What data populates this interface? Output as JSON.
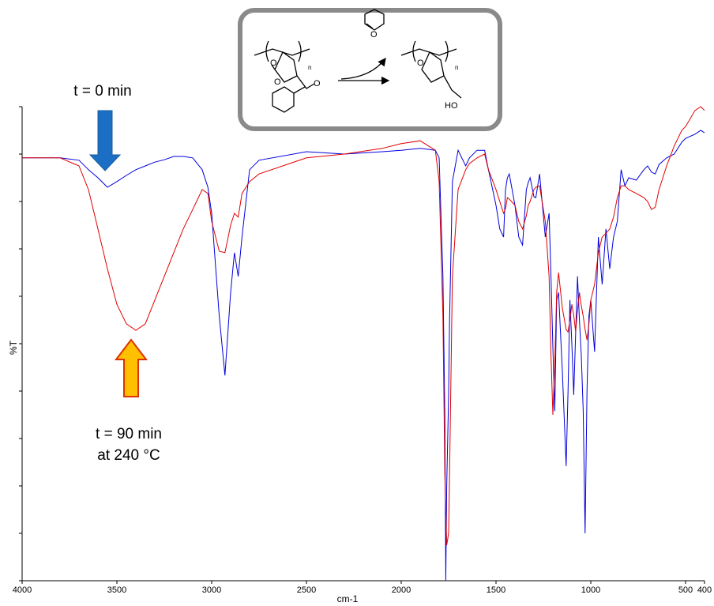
{
  "chart_data": {
    "type": "line",
    "xlabel": "cm-1",
    "ylabel": "%T",
    "annotations": [
      "t = 0 min",
      "t = 90 min",
      "at 240 °C"
    ],
    "scheme_labels": [
      "O",
      "O",
      "O",
      "n",
      "O",
      "O",
      "n",
      "HO"
    ],
    "xlim": [
      4000,
      400
    ],
    "xticks": [
      4000,
      3500,
      3000,
      2500,
      2000,
      1500,
      1000,
      500,
      400
    ],
    "ylim": [
      0,
      100
    ],
    "yticks": [
      0,
      10,
      20,
      30,
      40,
      50,
      60,
      70,
      80,
      90,
      100
    ],
    "x": [
      4000,
      3800,
      3700,
      3650,
      3600,
      3550,
      3500,
      3450,
      3400,
      3350,
      3300,
      3250,
      3200,
      3150,
      3100,
      3050,
      3020,
      3000,
      2960,
      2930,
      2900,
      2880,
      2860,
      2840,
      2800,
      2750,
      2500,
      2300,
      2100,
      2000,
      1900,
      1820,
      1800,
      1780,
      1770,
      1765,
      1760,
      1750,
      1745,
      1730,
      1700,
      1660,
      1640,
      1600,
      1560,
      1540,
      1500,
      1480,
      1460,
      1450,
      1440,
      1430,
      1400,
      1380,
      1360,
      1340,
      1330,
      1320,
      1300,
      1290,
      1270,
      1240,
      1220,
      1210,
      1200,
      1190,
      1180,
      1170,
      1150,
      1130,
      1120,
      1110,
      1100,
      1090,
      1080,
      1070,
      1060,
      1050,
      1040,
      1030,
      1020,
      1010,
      1000,
      980,
      960,
      940,
      920,
      900,
      880,
      860,
      840,
      820,
      800,
      760,
      720,
      700,
      680,
      660,
      640,
      600,
      560,
      520,
      500,
      450,
      420,
      400
    ],
    "series": [
      {
        "color": "#0000dd",
        "values": [
          89.2,
          89.2,
          88.7,
          86.7,
          85,
          83,
          84.2,
          85.5,
          86.7,
          87.5,
          88.3,
          88.8,
          89.5,
          89.5,
          89.2,
          86.7,
          83,
          77.5,
          55.8,
          43.3,
          60.8,
          69.2,
          64.2,
          72.5,
          86.7,
          88.7,
          90.5,
          90,
          90.5,
          90.8,
          91.2,
          90.8,
          89.2,
          64.2,
          35,
          0,
          20,
          39.2,
          55,
          84.2,
          90.8,
          87.5,
          89.2,
          90.8,
          90.8,
          86.7,
          79.2,
          74.2,
          72.5,
          82.5,
          85,
          85.8,
          79.2,
          72.5,
          70.8,
          82.5,
          84,
          85,
          81,
          80.8,
          85.8,
          72.5,
          77.5,
          64.2,
          49.2,
          35.8,
          59.2,
          60.8,
          44.2,
          24.2,
          40,
          59.2,
          50,
          39.2,
          52,
          64.2,
          55,
          47.5,
          35.8,
          10,
          40,
          55.8,
          59.2,
          48.3,
          72.5,
          62.5,
          74.2,
          65.8,
          72.5,
          75.8,
          86.7,
          83.3,
          85,
          84.5,
          86.7,
          87.5,
          86.2,
          85.8,
          87.8,
          89.2,
          90,
          92.5,
          93.3,
          94.2,
          95,
          94.5
        ]
      },
      {
        "color": "#e00000",
        "values": [
          89.2,
          89.2,
          87.5,
          82.5,
          74.2,
          65.8,
          58.3,
          54.2,
          52.8,
          54.2,
          59.2,
          64.2,
          69.2,
          74.2,
          78.3,
          82.5,
          81.7,
          75.8,
          69.5,
          69.2,
          75,
          77.5,
          76.7,
          81.7,
          84.2,
          85.8,
          89.2,
          90,
          91.2,
          92.2,
          92.8,
          90.8,
          84.2,
          55.8,
          22.5,
          15,
          7.5,
          10,
          22.5,
          64.2,
          82.5,
          86.7,
          88,
          89.2,
          90,
          86.7,
          82.5,
          80,
          77.5,
          78.5,
          80.8,
          80.5,
          79.2,
          75.8,
          74.2,
          77,
          79.2,
          80,
          82.5,
          83,
          83.3,
          75.8,
          64.2,
          47.5,
          35,
          45.8,
          60.8,
          65,
          57.5,
          53,
          52.5,
          55,
          58.3,
          56,
          52.5,
          57,
          60.8,
          58,
          55.8,
          53,
          50.8,
          54,
          59.2,
          62.5,
          69.2,
          72.5,
          73.3,
          74.2,
          76.7,
          80.8,
          83.3,
          83.3,
          82.5,
          81.7,
          80.8,
          80,
          78.3,
          78.8,
          82.5,
          87.5,
          91.7,
          95,
          95.8,
          99.2,
          100,
          99.2
        ]
      }
    ]
  }
}
